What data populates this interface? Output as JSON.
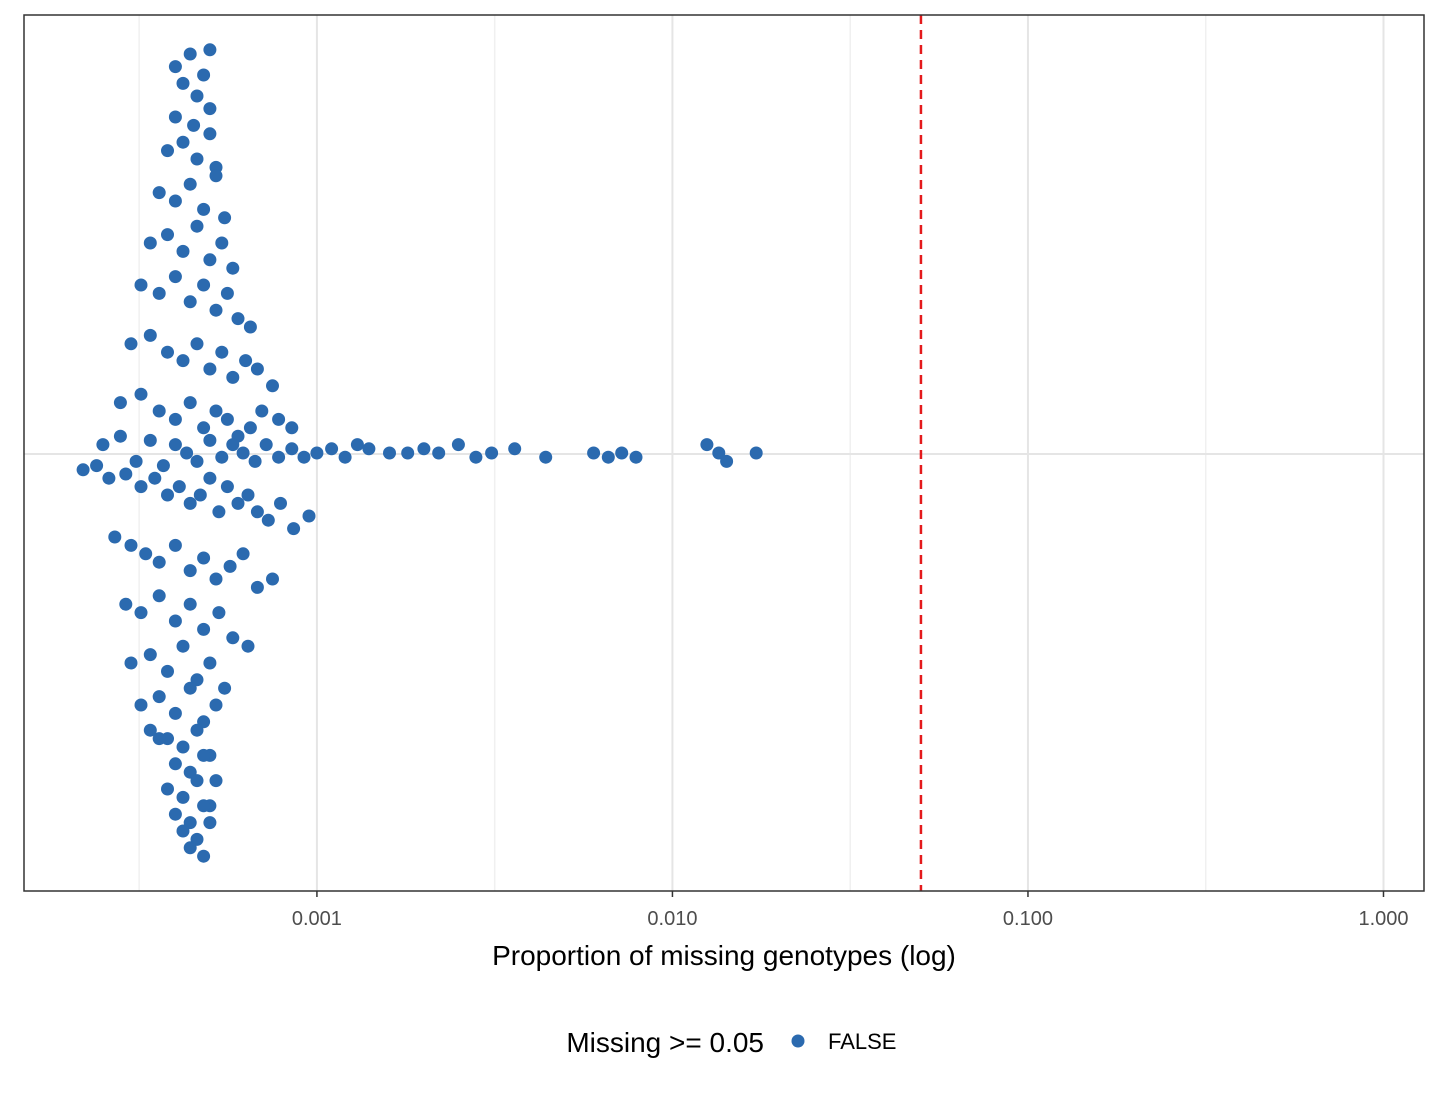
{
  "chart_data": {
    "type": "scatter",
    "subtype": "beeswarm",
    "xlabel": "Proportion of missing genotypes (log)",
    "ylabel": "",
    "x_scale": "log10",
    "xlim": [
      0.00015,
      1.3
    ],
    "x_ticks": [
      0.001,
      0.01,
      0.1,
      1.0
    ],
    "x_tick_labels": [
      "0.001",
      "0.010",
      "0.100",
      "1.000"
    ],
    "grid": true,
    "threshold": {
      "x": 0.05,
      "color": "#e41a1c",
      "style": "dashed"
    },
    "legend": {
      "title": "Missing >= 0.05",
      "position": "bottom",
      "entries": [
        {
          "label": "FALSE",
          "color": "#2b6aaf"
        }
      ]
    },
    "series": [
      {
        "color": "#2b6aaf",
        "x": [
          0.0004,
          0.00042,
          0.00044,
          0.00046,
          0.00048,
          0.0005,
          0.0004,
          0.00045,
          0.0005,
          0.00038,
          0.00042,
          0.00046,
          0.0005,
          0.00052,
          0.00036,
          0.0004,
          0.00044,
          0.00048,
          0.00052,
          0.00055,
          0.00034,
          0.00038,
          0.00042,
          0.00046,
          0.0005,
          0.00054,
          0.00058,
          0.00032,
          0.00036,
          0.0004,
          0.00044,
          0.00048,
          0.00052,
          0.00056,
          0.0006,
          0.00065,
          0.0003,
          0.00034,
          0.00038,
          0.00042,
          0.00046,
          0.0005,
          0.00054,
          0.00058,
          0.00063,
          0.00068,
          0.00075,
          0.00028,
          0.00032,
          0.00036,
          0.0004,
          0.00044,
          0.00048,
          0.00052,
          0.00056,
          0.0006,
          0.00065,
          0.0007,
          0.00078,
          0.00085,
          0.00025,
          0.00028,
          0.00031,
          0.00034,
          0.00037,
          0.0004,
          0.00043,
          0.00046,
          0.0005,
          0.00054,
          0.00058,
          0.00062,
          0.00067,
          0.00072,
          0.00078,
          0.00085,
          0.00092,
          0.001,
          0.0011,
          0.0012,
          0.0013,
          0.0014,
          0.0016,
          0.0018,
          0.002,
          0.0022,
          0.0025,
          0.0028,
          0.0031,
          0.0036,
          0.0044,
          0.006,
          0.0066,
          0.0072,
          0.0079,
          0.0125,
          0.0135,
          0.0142,
          0.0172,
          0.00022,
          0.00024,
          0.00026,
          0.00029,
          0.00032,
          0.00035,
          0.00038,
          0.00041,
          0.00044,
          0.00047,
          0.0005,
          0.00053,
          0.00056,
          0.0006,
          0.00064,
          0.00068,
          0.00073,
          0.00079,
          0.00086,
          0.00095,
          0.00027,
          0.0003,
          0.00033,
          0.00036,
          0.0004,
          0.00044,
          0.00048,
          0.00052,
          0.00057,
          0.00062,
          0.00068,
          0.00075,
          0.00029,
          0.00032,
          0.00036,
          0.0004,
          0.00044,
          0.00048,
          0.00053,
          0.00058,
          0.00064,
          0.0003,
          0.00034,
          0.00038,
          0.00042,
          0.00046,
          0.0005,
          0.00055,
          0.00032,
          0.00036,
          0.0004,
          0.00044,
          0.00048,
          0.00052,
          0.00034,
          0.00038,
          0.00042,
          0.00046,
          0.0005,
          0.00036,
          0.0004,
          0.00044,
          0.00048,
          0.00052,
          0.00038,
          0.00042,
          0.00046,
          0.0005,
          0.0004,
          0.00044,
          0.00048,
          0.00042,
          0.00046,
          0.0005,
          0.00044,
          0.00048
        ],
        "y": [
          0.92,
          0.88,
          0.95,
          0.85,
          0.9,
          0.96,
          0.8,
          0.78,
          0.82,
          0.72,
          0.74,
          0.7,
          0.76,
          0.68,
          0.62,
          0.6,
          0.64,
          0.58,
          0.66,
          0.56,
          0.5,
          0.52,
          0.48,
          0.54,
          0.46,
          0.5,
          0.44,
          0.4,
          0.38,
          0.42,
          0.36,
          0.4,
          0.34,
          0.38,
          0.32,
          0.3,
          0.26,
          0.28,
          0.24,
          0.22,
          0.26,
          0.2,
          0.24,
          0.18,
          0.22,
          0.2,
          0.16,
          0.12,
          0.14,
          0.1,
          0.08,
          0.12,
          0.06,
          0.1,
          0.08,
          0.04,
          0.06,
          0.1,
          0.08,
          0.06,
          0.02,
          0.04,
          -0.02,
          0.03,
          -0.03,
          0.02,
          0.0,
          -0.02,
          0.03,
          -0.01,
          0.02,
          0.0,
          -0.02,
          0.02,
          -0.01,
          0.01,
          -0.01,
          0.0,
          0.01,
          -0.01,
          0.02,
          0.01,
          0.0,
          0.0,
          0.01,
          0.0,
          0.02,
          -0.01,
          0.0,
          0.01,
          -0.01,
          0.0,
          -0.01,
          0.0,
          -0.01,
          0.02,
          0.0,
          -0.02,
          0.0,
          -0.04,
          -0.03,
          -0.06,
          -0.05,
          -0.08,
          -0.06,
          -0.1,
          -0.08,
          -0.12,
          -0.1,
          -0.06,
          -0.14,
          -0.08,
          -0.12,
          -0.1,
          -0.14,
          -0.16,
          -0.12,
          -0.18,
          -0.15,
          -0.2,
          -0.22,
          -0.24,
          -0.26,
          -0.22,
          -0.28,
          -0.25,
          -0.3,
          -0.27,
          -0.24,
          -0.32,
          -0.3,
          -0.36,
          -0.38,
          -0.34,
          -0.4,
          -0.36,
          -0.42,
          -0.38,
          -0.44,
          -0.46,
          -0.5,
          -0.48,
          -0.52,
          -0.46,
          -0.54,
          -0.5,
          -0.56,
          -0.6,
          -0.58,
          -0.62,
          -0.56,
          -0.64,
          -0.6,
          -0.66,
          -0.68,
          -0.7,
          -0.66,
          -0.72,
          -0.68,
          -0.74,
          -0.76,
          -0.72,
          -0.78,
          -0.8,
          -0.82,
          -0.78,
          -0.84,
          -0.86,
          -0.88,
          -0.84,
          -0.9,
          -0.92,
          -0.88,
          -0.94,
          -0.96
        ]
      }
    ]
  }
}
